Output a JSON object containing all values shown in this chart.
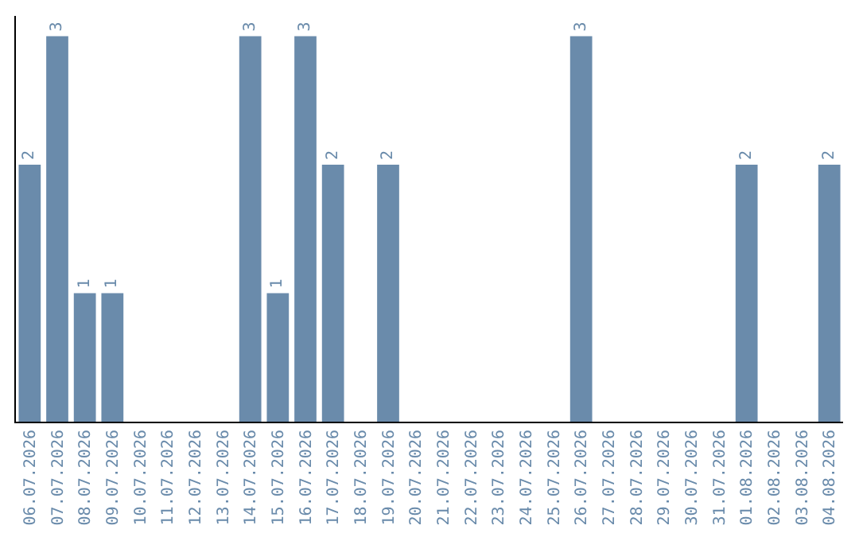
{
  "chart_data": {
    "type": "bar",
    "categories": [
      "06.07.2026",
      "07.07.2026",
      "08.07.2026",
      "09.07.2026",
      "10.07.2026",
      "11.07.2026",
      "12.07.2026",
      "13.07.2026",
      "14.07.2026",
      "15.07.2026",
      "16.07.2026",
      "17.07.2026",
      "18.07.2026",
      "19.07.2026",
      "20.07.2026",
      "21.07.2026",
      "22.07.2026",
      "23.07.2026",
      "24.07.2026",
      "25.07.2026",
      "26.07.2026",
      "27.07.2026",
      "28.07.2026",
      "29.07.2026",
      "30.07.2026",
      "31.07.2026",
      "01.08.2026",
      "02.08.2026",
      "03.08.2026",
      "04.08.2026"
    ],
    "values": [
      2,
      3,
      1,
      1,
      0,
      0,
      0,
      0,
      3,
      1,
      3,
      2,
      0,
      2,
      0,
      0,
      0,
      0,
      0,
      0,
      3,
      0,
      0,
      0,
      0,
      0,
      2,
      0,
      0,
      2
    ],
    "value_labels": [
      "2",
      "3",
      "1",
      "1",
      null,
      null,
      null,
      null,
      "3",
      "1",
      "3",
      "2",
      null,
      "2",
      null,
      null,
      null,
      null,
      null,
      null,
      "3",
      null,
      null,
      null,
      null,
      null,
      "2",
      null,
      null,
      "2"
    ],
    "color": "#6a8bab",
    "tick_labels": "x",
    "legend": false
  }
}
